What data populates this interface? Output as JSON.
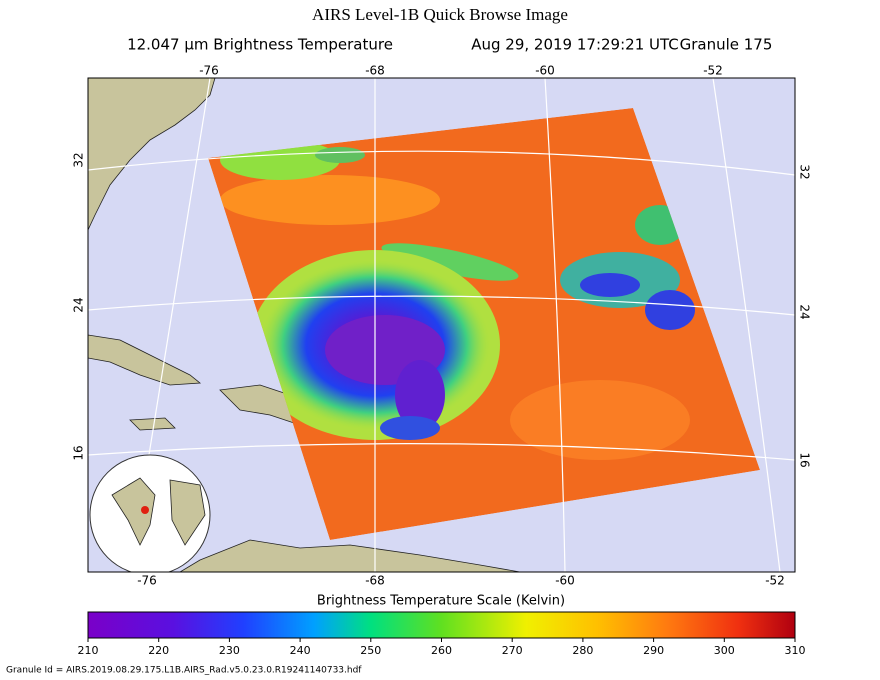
{
  "header": {
    "title": "AIRS Level-1B Quick Browse Image",
    "subtitle": "12.047 μm Brightness Temperature",
    "timestamp": "Aug 29, 2019 17:29:21 UTC",
    "granule": "Granule 175"
  },
  "map": {
    "lon_labels_top": [
      "-76",
      "-68",
      "-60",
      "-52"
    ],
    "lon_labels_bottom": [
      "-76",
      "-68",
      "-60",
      "-52"
    ],
    "lat_labels_left": [
      "32",
      "24",
      "16"
    ],
    "lat_labels_right": [
      "32",
      "24",
      "16"
    ]
  },
  "colorbar": {
    "title": "Brightness Temperature Scale (Kelvin)",
    "range": [
      210,
      310
    ],
    "ticks": [
      210,
      220,
      230,
      240,
      250,
      260,
      270,
      280,
      290,
      300,
      310
    ]
  },
  "footer": {
    "granule_id": "Granule Id = AIRS.2019.08.29.175.L1B.AIRS_Rad.v5.0.23.0.R19241140733.hdf"
  }
}
